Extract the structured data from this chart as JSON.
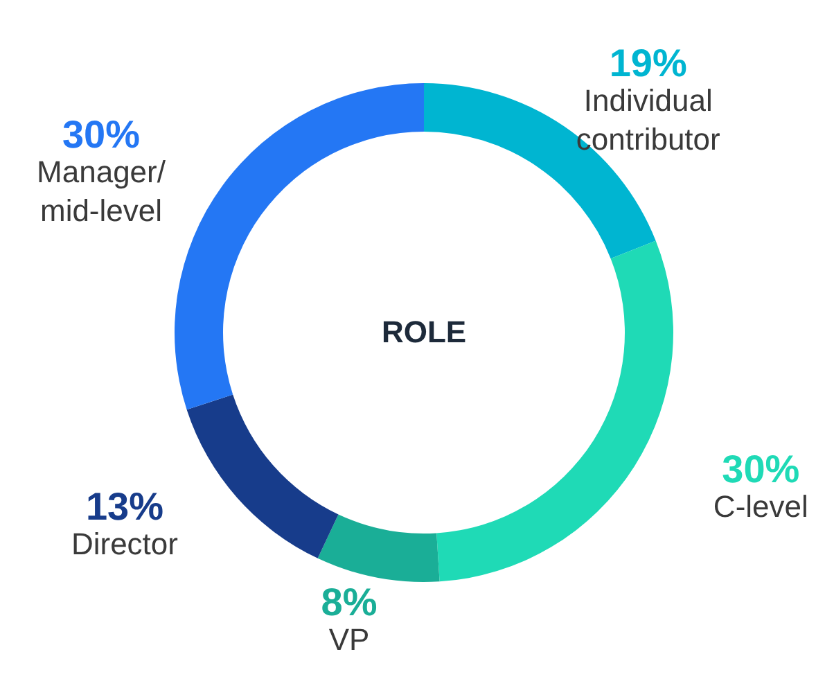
{
  "chart_data": {
    "type": "donut",
    "title": "ROLE",
    "categories": [
      "Individual contributor",
      "C-level",
      "VP",
      "Director",
      "Manager/mid-level"
    ],
    "values": [
      19,
      30,
      8,
      13,
      30
    ],
    "value_labels": [
      "19%",
      "30%",
      "8%",
      "13%",
      "30%"
    ],
    "colors": [
      "#00b5d1",
      "#1fdab6",
      "#1aae97",
      "#173c8b",
      "#2477f4"
    ]
  }
}
